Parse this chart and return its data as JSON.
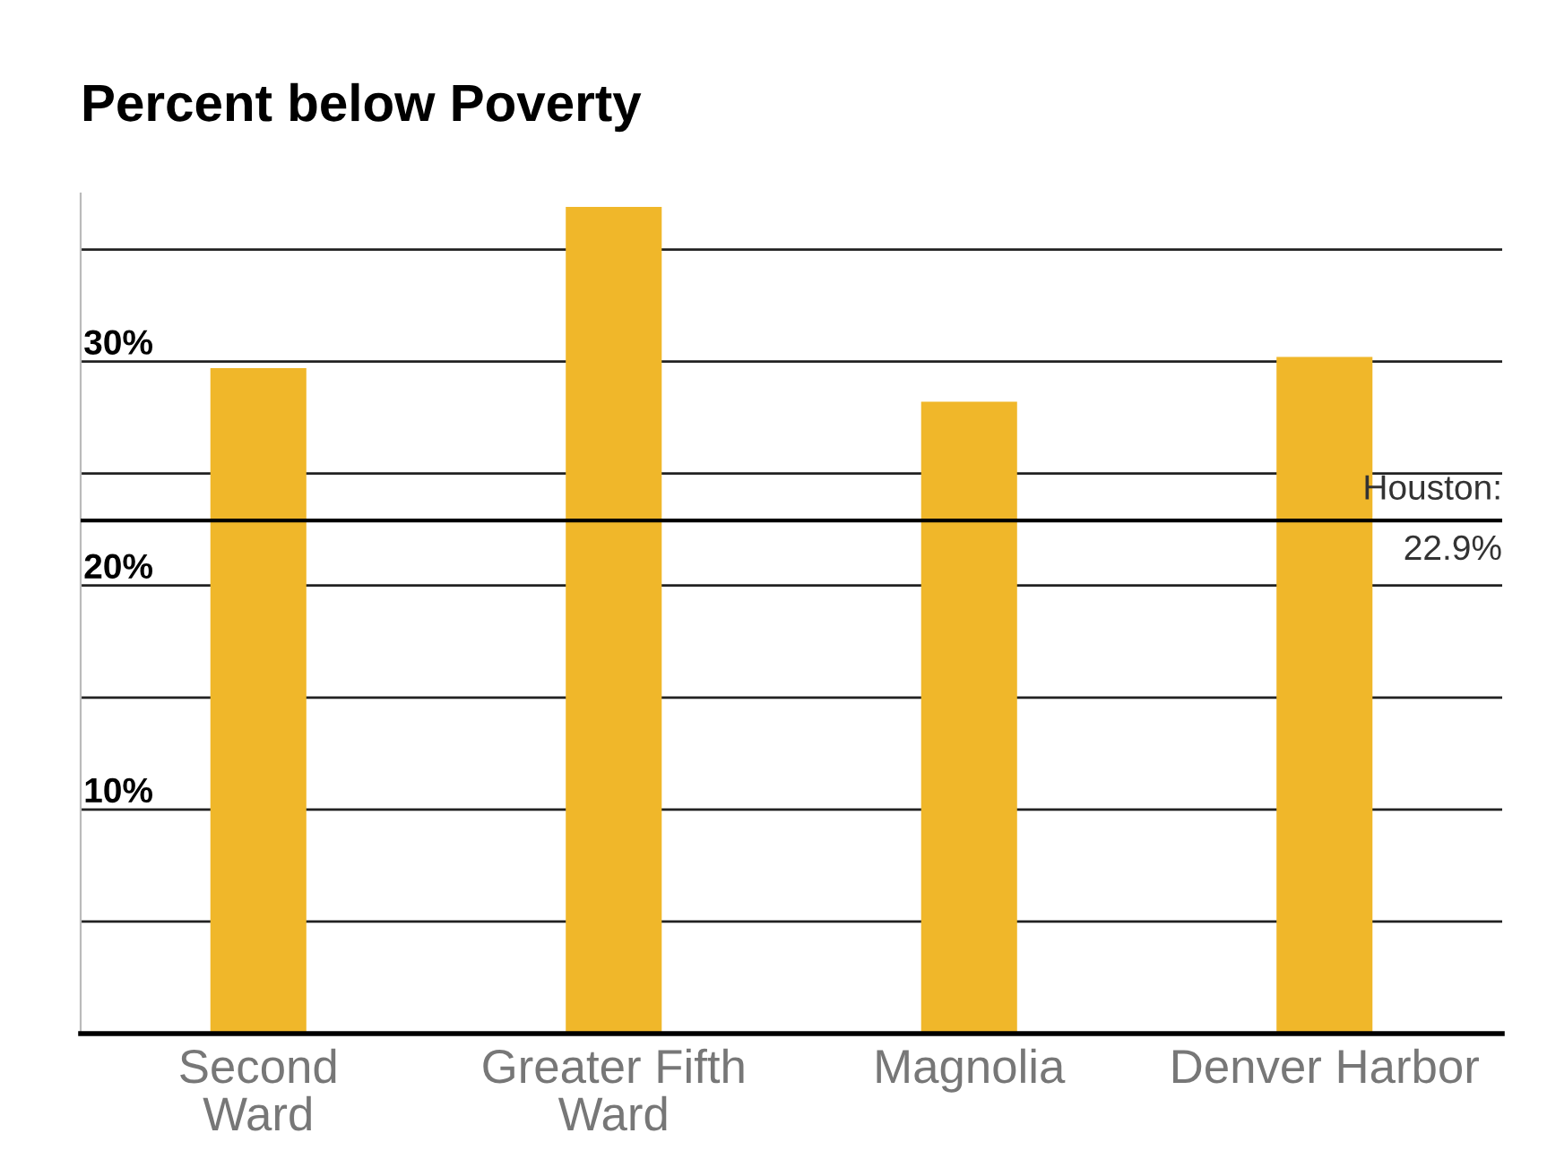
{
  "chart_data": {
    "type": "bar",
    "title": "Percent below Poverty",
    "categories": [
      "Second\nWard",
      "Greater Fifth\nWard",
      "Magnolia",
      "Denver Harbor"
    ],
    "values": [
      29.7,
      36.9,
      28.2,
      30.2
    ],
    "color": "#f0b72a",
    "ylim": [
      0,
      37.5
    ],
    "yticks": [
      {
        "value": 5,
        "label": null
      },
      {
        "value": 10,
        "label": "10%"
      },
      {
        "value": 15,
        "label": null
      },
      {
        "value": 20,
        "label": "20%"
      },
      {
        "value": 25,
        "label": null
      },
      {
        "value": 30,
        "label": "30%"
      },
      {
        "value": 35,
        "label": null
      }
    ],
    "grid": "y",
    "ref_lines": [
      {
        "axis": "y",
        "value": 22.9,
        "label": "Houston:\n22.9%",
        "color": "#000000"
      }
    ]
  }
}
